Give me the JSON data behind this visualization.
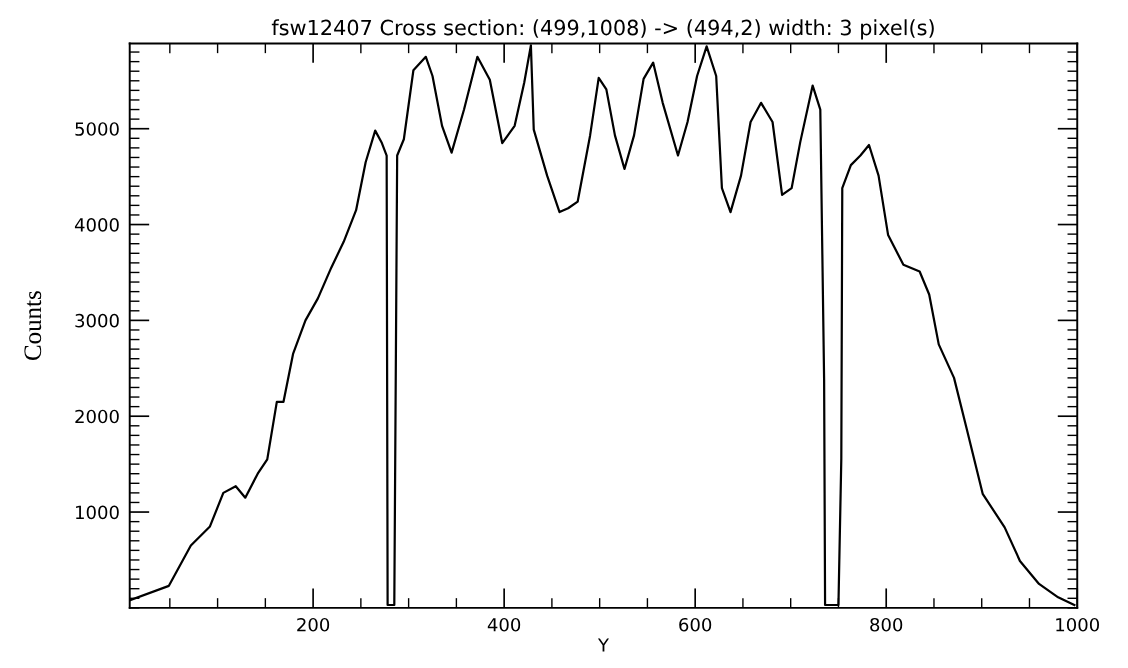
{
  "chart_data": {
    "type": "line",
    "title": "fsw12407 Cross section: (499,1008) -> (494,2) width: 3 pixel(s)",
    "xlabel": "Y",
    "ylabel": "Counts",
    "xlim": [
      8,
      1000
    ],
    "ylim": [
      0,
      5890
    ],
    "xticks": [
      200,
      400,
      600,
      800,
      1000
    ],
    "yticks": [
      1000,
      2000,
      3000,
      4000,
      5000
    ],
    "grid": false,
    "marker": "none",
    "line_style": "solid",
    "series": [
      {
        "color": "#000000",
        "x": [
          8,
          49,
          72,
          92,
          106,
          119,
          129,
          142,
          152,
          162,
          169,
          179,
          192,
          205,
          219,
          232,
          245,
          255,
          265,
          272,
          277,
          278,
          285,
          288,
          295,
          305,
          318,
          325,
          335,
          345,
          358,
          372,
          385,
          398,
          411,
          421,
          428,
          431,
          445,
          458,
          467,
          477,
          490,
          499,
          507,
          516,
          526,
          536,
          546,
          556,
          566,
          582,
          592,
          602,
          612,
          622,
          628,
          637,
          648,
          658,
          669,
          681,
          691,
          701,
          710,
          723,
          731,
          735,
          736,
          750,
          753,
          754,
          763,
          773,
          782,
          792,
          802,
          818,
          835,
          845,
          855,
          871,
          884,
          901,
          924,
          940,
          960,
          980,
          997
        ],
        "values": [
          80,
          230,
          650,
          850,
          1200,
          1270,
          1150,
          1400,
          1550,
          2150,
          2150,
          2650,
          3000,
          3230,
          3550,
          3820,
          4150,
          4650,
          4980,
          4850,
          4720,
          30,
          30,
          4720,
          4890,
          5610,
          5750,
          5550,
          5030,
          4750,
          5200,
          5750,
          5510,
          4850,
          5030,
          5480,
          5870,
          4990,
          4510,
          4130,
          4170,
          4240,
          4930,
          5530,
          5410,
          4930,
          4580,
          4930,
          5520,
          5690,
          5270,
          4720,
          5070,
          5550,
          5860,
          5550,
          4380,
          4130,
          4510,
          5070,
          5270,
          5070,
          4310,
          4380,
          4860,
          5450,
          5200,
          2380,
          30,
          30,
          1560,
          4380,
          4620,
          4720,
          4830,
          4510,
          3890,
          3580,
          3510,
          3270,
          2750,
          2400,
          1880,
          1190,
          840,
          490,
          250,
          110,
          30
        ]
      }
    ]
  }
}
